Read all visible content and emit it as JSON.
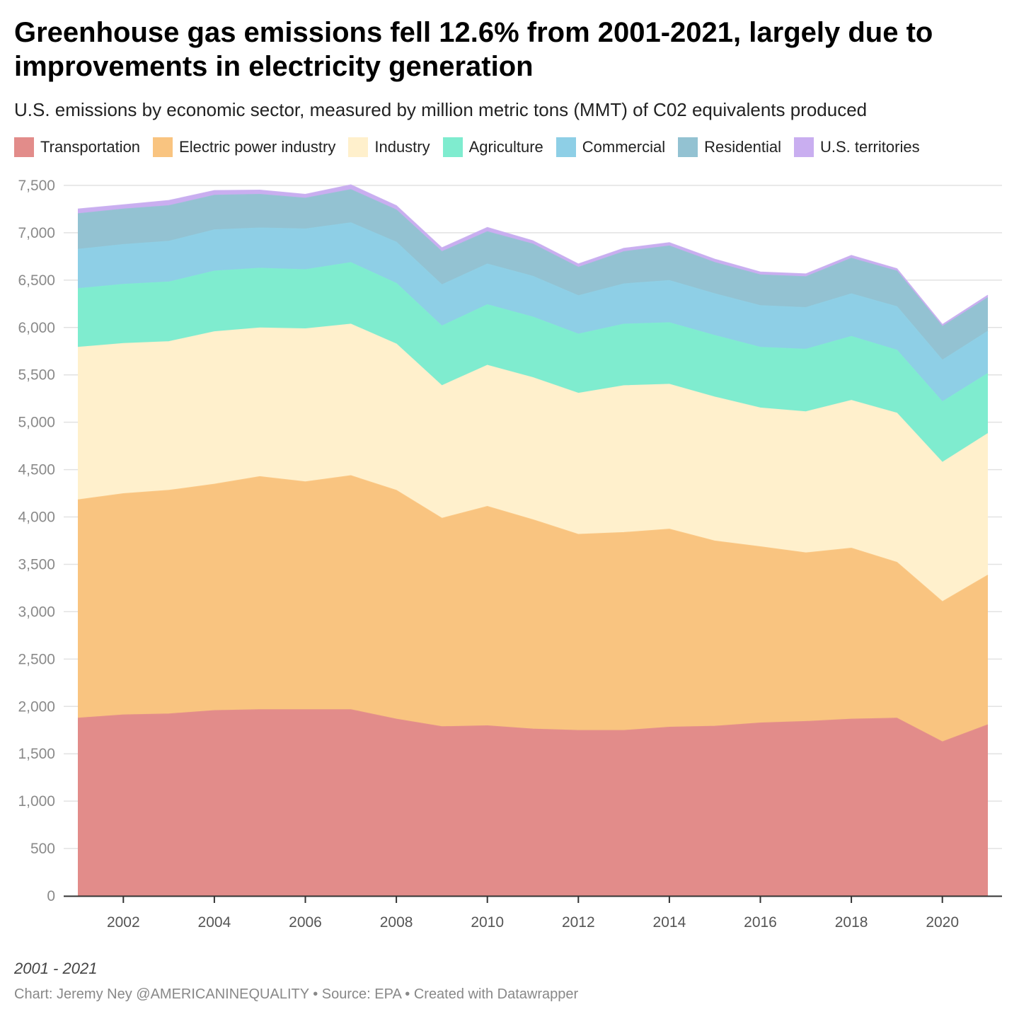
{
  "title": "Greenhouse gas emissions fell 12.6% from 2001-2021, largely due to improvements in electricity generation",
  "subtitle": "U.S. emissions by economic sector, measured by million metric tons (MMT) of C02 equivalents produced",
  "range_note": "2001 - 2021",
  "footer": "Chart: Jeremy Ney @AMERICANINEQUALITY • Source: EPA • Created with Datawrapper",
  "chart_data": {
    "type": "area",
    "stacked": true,
    "title": "Greenhouse gas emissions fell 12.6% from 2001-2021, largely due to improvements in electricity generation",
    "xlabel": "",
    "ylabel": "",
    "ylim": [
      0,
      7500
    ],
    "xlim": [
      2001,
      2021
    ],
    "grid": true,
    "legend_position": "top-left",
    "x": [
      2001,
      2002,
      2003,
      2004,
      2005,
      2006,
      2007,
      2008,
      2009,
      2010,
      2011,
      2012,
      2013,
      2014,
      2015,
      2016,
      2017,
      2018,
      2019,
      2020,
      2021
    ],
    "x_ticks": [
      2002,
      2004,
      2006,
      2008,
      2010,
      2012,
      2014,
      2016,
      2018,
      2020
    ],
    "y_ticks": [
      0,
      500,
      1000,
      1500,
      2000,
      2500,
      3000,
      3500,
      4000,
      4500,
      5000,
      5500,
      6000,
      6500,
      7000,
      7500
    ],
    "series": [
      {
        "name": "Transportation",
        "color": "#e28c8a",
        "values": [
          1875,
          1910,
          1920,
          1955,
          1965,
          1965,
          1965,
          1865,
          1785,
          1795,
          1760,
          1745,
          1745,
          1780,
          1790,
          1825,
          1840,
          1865,
          1875,
          1625,
          1805
        ]
      },
      {
        "name": "Electric power industry",
        "color": "#f9c480",
        "values": [
          2305,
          2335,
          2360,
          2390,
          2460,
          2405,
          2470,
          2415,
          2200,
          2315,
          2210,
          2070,
          2090,
          2090,
          1955,
          1860,
          1780,
          1805,
          1645,
          1480,
          1580
        ]
      },
      {
        "name": "Industry",
        "color": "#fff0cc",
        "values": [
          1610,
          1585,
          1570,
          1610,
          1570,
          1615,
          1600,
          1545,
          1400,
          1490,
          1500,
          1490,
          1550,
          1530,
          1520,
          1465,
          1490,
          1560,
          1575,
          1470,
          1495
        ]
      },
      {
        "name": "Agriculture",
        "color": "#7feccf",
        "values": [
          620,
          625,
          630,
          640,
          630,
          625,
          650,
          640,
          630,
          640,
          640,
          625,
          650,
          650,
          650,
          640,
          660,
          675,
          665,
          640,
          635
        ]
      },
      {
        "name": "Commercial",
        "color": "#8ecfe6",
        "values": [
          415,
          420,
          430,
          435,
          425,
          430,
          420,
          435,
          435,
          430,
          430,
          405,
          425,
          445,
          440,
          440,
          440,
          450,
          460,
          440,
          445
        ]
      },
      {
        "name": "Residential",
        "color": "#93c2d2",
        "values": [
          375,
          375,
          375,
          365,
          355,
          325,
          350,
          340,
          350,
          340,
          340,
          300,
          340,
          365,
          330,
          325,
          325,
          375,
          375,
          355,
          355
        ]
      },
      {
        "name": "U.S. territories",
        "color": "#c9aef0",
        "values": [
          50,
          45,
          55,
          50,
          45,
          40,
          50,
          45,
          40,
          45,
          35,
          35,
          35,
          35,
          35,
          30,
          30,
          30,
          25,
          20,
          25
        ]
      }
    ]
  }
}
